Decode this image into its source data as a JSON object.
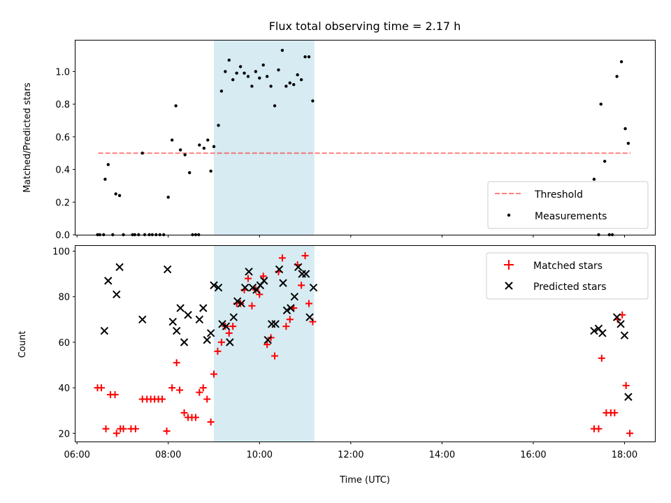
{
  "colors": {
    "band": "#add8e6",
    "threshold": "#ff0000",
    "measurements": "#000000",
    "matched": "#ff0000",
    "predicted": "#000000"
  },
  "chart_data": [
    {
      "type": "scatter",
      "title": "Flux total observing time = 2.17 h",
      "xlabel": "",
      "ylabel": "Matched/Predicted stars",
      "xlim": [
        "05:58",
        "18:40"
      ],
      "ylim": [
        0,
        1.19
      ],
      "yticks": [
        "0.0",
        "0.2",
        "0.4",
        "0.6",
        "0.8",
        "1.0"
      ],
      "grid": false,
      "legend_position": "lower right",
      "highlight_band": {
        "x_start": "09:00",
        "x_end": "11:12"
      },
      "threshold": {
        "name": "Threshold",
        "y": 0.5,
        "x_start": "06:28",
        "x_end": "18:08"
      },
      "series": [
        {
          "name": "Measurements",
          "marker": "dot",
          "points": [
            [
              "06:27",
              0.0
            ],
            [
              "06:30",
              0.0
            ],
            [
              "06:35",
              0.0
            ],
            [
              "06:37",
              0.34
            ],
            [
              "06:41",
              0.43
            ],
            [
              "06:47",
              0.0
            ],
            [
              "06:51",
              0.25
            ],
            [
              "06:56",
              0.24
            ],
            [
              "07:01",
              0.0
            ],
            [
              "07:13",
              0.0
            ],
            [
              "07:16",
              0.0
            ],
            [
              "07:21",
              0.0
            ],
            [
              "07:26",
              0.5
            ],
            [
              "07:29",
              0.0
            ],
            [
              "07:35",
              0.0
            ],
            [
              "07:39",
              0.0
            ],
            [
              "07:44",
              0.0
            ],
            [
              "07:49",
              0.0
            ],
            [
              "07:54",
              0.0
            ],
            [
              "08:00",
              0.23
            ],
            [
              "08:05",
              0.58
            ],
            [
              "08:10",
              0.79
            ],
            [
              "08:16",
              0.52
            ],
            [
              "08:22",
              0.49
            ],
            [
              "08:28",
              0.38
            ],
            [
              "08:32",
              0.0
            ],
            [
              "08:36",
              0.0
            ],
            [
              "08:40",
              0.0
            ],
            [
              "08:41",
              0.55
            ],
            [
              "08:47",
              0.53
            ],
            [
              "08:52",
              0.58
            ],
            [
              "08:56",
              0.39
            ],
            [
              "09:00",
              0.54
            ],
            [
              "09:06",
              0.67
            ],
            [
              "09:10",
              0.88
            ],
            [
              "09:15",
              1.0
            ],
            [
              "09:20",
              1.07
            ],
            [
              "09:25",
              0.95
            ],
            [
              "09:30",
              0.99
            ],
            [
              "09:35",
              1.03
            ],
            [
              "09:40",
              0.99
            ],
            [
              "09:45",
              0.97
            ],
            [
              "09:50",
              0.91
            ],
            [
              "09:55",
              1.0
            ],
            [
              "10:00",
              0.96
            ],
            [
              "10:05",
              1.04
            ],
            [
              "10:10",
              0.97
            ],
            [
              "10:15",
              0.91
            ],
            [
              "10:20",
              0.79
            ],
            [
              "10:25",
              1.01
            ],
            [
              "10:30",
              1.13
            ],
            [
              "10:35",
              0.91
            ],
            [
              "10:40",
              0.93
            ],
            [
              "10:45",
              0.92
            ],
            [
              "10:50",
              0.98
            ],
            [
              "10:55",
              0.95
            ],
            [
              "11:00",
              1.09
            ],
            [
              "11:05",
              1.09
            ],
            [
              "11:10",
              0.82
            ],
            [
              "17:20",
              0.34
            ],
            [
              "17:26",
              0.0
            ],
            [
              "17:29",
              0.8
            ],
            [
              "17:34",
              0.45
            ],
            [
              "17:40",
              0.0
            ],
            [
              "17:44",
              0.0
            ],
            [
              "17:50",
              0.97
            ],
            [
              "17:56",
              1.06
            ],
            [
              "18:01",
              0.65
            ],
            [
              "18:05",
              0.56
            ]
          ]
        }
      ]
    },
    {
      "type": "scatter",
      "title": "",
      "xlabel": "Time (UTC)",
      "ylabel": "Count",
      "xlim": [
        "05:58",
        "18:40"
      ],
      "ylim": [
        16.4,
        102.3
      ],
      "xticks": [
        "06:00",
        "08:00",
        "10:00",
        "12:00",
        "14:00",
        "16:00",
        "18:00"
      ],
      "yticks": [
        "20",
        "40",
        "60",
        "80",
        "100"
      ],
      "grid": false,
      "legend_position": "upper right",
      "highlight_band": {
        "x_start": "09:00",
        "x_end": "11:12"
      },
      "series": [
        {
          "name": "Matched stars",
          "marker": "plus",
          "points": [
            [
              "06:27",
              40
            ],
            [
              "06:32",
              40
            ],
            [
              "06:38",
              22
            ],
            [
              "06:44",
              37
            ],
            [
              "06:50",
              37
            ],
            [
              "06:52",
              20
            ],
            [
              "06:57",
              22
            ],
            [
              "07:01",
              22
            ],
            [
              "07:11",
              22
            ],
            [
              "07:17",
              22
            ],
            [
              "07:26",
              35
            ],
            [
              "07:32",
              35
            ],
            [
              "07:37",
              35
            ],
            [
              "07:42",
              35
            ],
            [
              "07:47",
              35
            ],
            [
              "07:52",
              35
            ],
            [
              "07:58",
              21
            ],
            [
              "08:05",
              40
            ],
            [
              "08:11",
              51
            ],
            [
              "08:15",
              39
            ],
            [
              "08:21",
              29
            ],
            [
              "08:26",
              27
            ],
            [
              "08:31",
              27
            ],
            [
              "08:36",
              27
            ],
            [
              "08:41",
              38
            ],
            [
              "08:46",
              40
            ],
            [
              "08:51",
              35
            ],
            [
              "08:56",
              25
            ],
            [
              "09:00",
              46
            ],
            [
              "09:05",
              56
            ],
            [
              "09:10",
              60
            ],
            [
              "09:15",
              67
            ],
            [
              "09:20",
              64
            ],
            [
              "09:25",
              67
            ],
            [
              "09:30",
              77
            ],
            [
              "09:35",
              77
            ],
            [
              "09:40",
              83
            ],
            [
              "09:45",
              88
            ],
            [
              "09:50",
              76
            ],
            [
              "09:55",
              83
            ],
            [
              "10:00",
              81
            ],
            [
              "10:05",
              89
            ],
            [
              "10:10",
              59
            ],
            [
              "10:15",
              62
            ],
            [
              "10:20",
              54
            ],
            [
              "10:25",
              91
            ],
            [
              "10:30",
              97
            ],
            [
              "10:35",
              67
            ],
            [
              "10:40",
              70
            ],
            [
              "10:45",
              75
            ],
            [
              "10:50",
              94
            ],
            [
              "10:55",
              85
            ],
            [
              "11:00",
              98
            ],
            [
              "11:05",
              77
            ],
            [
              "11:10",
              69
            ],
            [
              "17:20",
              22
            ],
            [
              "17:26",
              22
            ],
            [
              "17:30",
              53
            ],
            [
              "17:36",
              29
            ],
            [
              "17:42",
              29
            ],
            [
              "17:47",
              29
            ],
            [
              "17:51",
              70
            ],
            [
              "17:57",
              72
            ],
            [
              "18:02",
              41
            ],
            [
              "18:07",
              20
            ]
          ]
        },
        {
          "name": "Predicted stars",
          "marker": "x",
          "points": [
            [
              "06:36",
              65
            ],
            [
              "06:41",
              87
            ],
            [
              "06:52",
              81
            ],
            [
              "06:56",
              93
            ],
            [
              "07:26",
              70
            ],
            [
              "07:59",
              92
            ],
            [
              "08:06",
              69
            ],
            [
              "08:11",
              65
            ],
            [
              "08:16",
              75
            ],
            [
              "08:21",
              60
            ],
            [
              "08:26",
              72
            ],
            [
              "08:41",
              70
            ],
            [
              "08:46",
              75
            ],
            [
              "08:51",
              61
            ],
            [
              "08:56",
              64
            ],
            [
              "09:00",
              85
            ],
            [
              "09:06",
              84
            ],
            [
              "09:11",
              68
            ],
            [
              "09:16",
              67
            ],
            [
              "09:21",
              60
            ],
            [
              "09:26",
              71
            ],
            [
              "09:31",
              78
            ],
            [
              "09:36",
              77
            ],
            [
              "09:41",
              84
            ],
            [
              "09:46",
              91
            ],
            [
              "09:51",
              84
            ],
            [
              "09:56",
              83
            ],
            [
              "10:01",
              85
            ],
            [
              "10:06",
              87
            ],
            [
              "10:11",
              61
            ],
            [
              "10:16",
              68
            ],
            [
              "10:21",
              68
            ],
            [
              "10:26",
              92
            ],
            [
              "10:31",
              86
            ],
            [
              "10:36",
              74
            ],
            [
              "10:41",
              75
            ],
            [
              "10:46",
              80
            ],
            [
              "10:51",
              93
            ],
            [
              "10:56",
              90
            ],
            [
              "11:01",
              90
            ],
            [
              "11:06",
              71
            ],
            [
              "11:11",
              84
            ],
            [
              "17:20",
              65
            ],
            [
              "17:26",
              66
            ],
            [
              "17:31",
              64
            ],
            [
              "17:50",
              71
            ],
            [
              "17:55",
              68
            ],
            [
              "18:00",
              63
            ],
            [
              "18:05",
              36
            ]
          ]
        }
      ]
    }
  ]
}
